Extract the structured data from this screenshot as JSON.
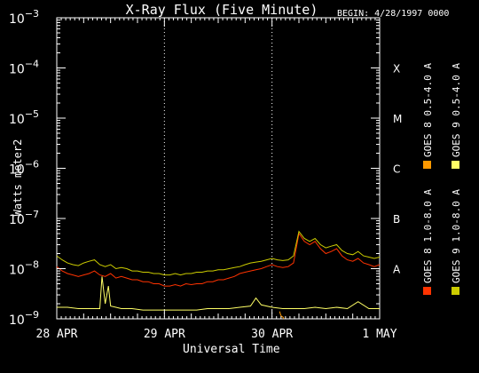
{
  "chart_data": {
    "type": "line",
    "title": "X-Ray Flux (Five Minute)",
    "begin_label": "BEGIN: 4/28/1997 0000",
    "xlabel": "Universal Time",
    "ylabel": "Watts meter2",
    "y_scale": "log",
    "ylim": [
      1e-09,
      0.001
    ],
    "y_tick_exponents": [
      "-3",
      "-4",
      "-5",
      "-6",
      "-7",
      "-8",
      "-9"
    ],
    "x_ticks": [
      "28 APR",
      "29 APR",
      "30 APR",
      "1 MAY"
    ],
    "x_days": [
      0,
      1,
      2,
      3
    ],
    "xlim_days": [
      0,
      3
    ],
    "flare_classes": [
      "X",
      "M",
      "C",
      "B",
      "A"
    ],
    "grid": "dotted vertical at day boundaries",
    "series": [
      {
        "name": "GOES 8 1.0-8.0 A",
        "color": "#ff3300",
        "x_days": [
          0.0,
          0.05,
          0.1,
          0.15,
          0.2,
          0.25,
          0.3,
          0.35,
          0.4,
          0.45,
          0.5,
          0.55,
          0.6,
          0.65,
          0.7,
          0.75,
          0.8,
          0.85,
          0.9,
          0.95,
          1.0,
          1.05,
          1.1,
          1.15,
          1.2,
          1.25,
          1.3,
          1.35,
          1.4,
          1.45,
          1.5,
          1.55,
          1.6,
          1.65,
          1.7,
          1.75,
          1.8,
          1.85,
          1.9,
          1.95,
          2.0,
          2.05,
          2.1,
          2.15,
          2.2,
          2.25,
          2.3,
          2.35,
          2.4,
          2.45,
          2.5,
          2.55,
          2.6,
          2.65,
          2.7,
          2.75,
          2.8,
          2.85,
          2.9,
          2.95,
          3.0
        ],
        "values": [
          1.1e-08,
          9e-09,
          8e-09,
          7.5e-09,
          7e-09,
          7.5e-09,
          8e-09,
          9e-09,
          7.5e-09,
          7e-09,
          8e-09,
          6.5e-09,
          7e-09,
          6.5e-09,
          6e-09,
          6e-09,
          5.5e-09,
          5.5e-09,
          5e-09,
          5e-09,
          4.5e-09,
          4.5e-09,
          4.8e-09,
          4.5e-09,
          5e-09,
          4.8e-09,
          5e-09,
          5e-09,
          5.5e-09,
          5.5e-09,
          6e-09,
          6e-09,
          6.5e-09,
          7e-09,
          8e-09,
          8.5e-09,
          9e-09,
          9.5e-09,
          1e-08,
          1.1e-08,
          1.2e-08,
          1.1e-08,
          1.05e-08,
          1.1e-08,
          1.3e-08,
          5e-08,
          3.5e-08,
          3e-08,
          3.5e-08,
          2.5e-08,
          2e-08,
          2.2e-08,
          2.5e-08,
          1.8e-08,
          1.5e-08,
          1.4e-08,
          1.6e-08,
          1.3e-08,
          1.2e-08,
          1.1e-08,
          1.2e-08
        ]
      },
      {
        "name": "GOES 9 1.0-8.0 A",
        "color": "#cccc00",
        "x_days": [
          0.0,
          0.05,
          0.1,
          0.15,
          0.2,
          0.25,
          0.3,
          0.35,
          0.4,
          0.45,
          0.5,
          0.55,
          0.6,
          0.65,
          0.7,
          0.75,
          0.8,
          0.85,
          0.9,
          0.95,
          1.0,
          1.05,
          1.1,
          1.15,
          1.2,
          1.25,
          1.3,
          1.35,
          1.4,
          1.45,
          1.5,
          1.55,
          1.6,
          1.65,
          1.7,
          1.75,
          1.8,
          1.85,
          1.9,
          1.95,
          2.0,
          2.05,
          2.1,
          2.15,
          2.2,
          2.25,
          2.3,
          2.35,
          2.4,
          2.45,
          2.5,
          2.55,
          2.6,
          2.65,
          2.7,
          2.75,
          2.8,
          2.85,
          2.9,
          2.95,
          3.0
        ],
        "values": [
          1.8e-08,
          1.5e-08,
          1.3e-08,
          1.2e-08,
          1.15e-08,
          1.3e-08,
          1.4e-08,
          1.5e-08,
          1.2e-08,
          1.1e-08,
          1.2e-08,
          1e-08,
          1.05e-08,
          1e-08,
          9e-09,
          9e-09,
          8.5e-09,
          8.5e-09,
          8e-09,
          8e-09,
          7.5e-09,
          7.5e-09,
          8e-09,
          7.5e-09,
          8e-09,
          8e-09,
          8.5e-09,
          8.5e-09,
          9e-09,
          9e-09,
          9.5e-09,
          9.5e-09,
          1e-08,
          1.05e-08,
          1.1e-08,
          1.2e-08,
          1.3e-08,
          1.35e-08,
          1.4e-08,
          1.5e-08,
          1.6e-08,
          1.5e-08,
          1.45e-08,
          1.5e-08,
          1.8e-08,
          5.5e-08,
          4e-08,
          3.5e-08,
          4e-08,
          3e-08,
          2.6e-08,
          2.8e-08,
          3e-08,
          2.3e-08,
          2e-08,
          1.9e-08,
          2.2e-08,
          1.8e-08,
          1.7e-08,
          1.6e-08,
          1.7e-08
        ]
      },
      {
        "name": "GOES 8 0.5-4.0 A",
        "color": "#ff9900",
        "x_days": [
          2.07,
          2.08,
          2.09,
          2.1,
          2.11
        ],
        "values": [
          1.4e-09,
          1.2e-09,
          1.1e-09,
          1.1e-09,
          1e-09
        ]
      },
      {
        "name": "GOES 9 0.5-4.0 A",
        "color": "#ffff66",
        "x_days": [
          0.0,
          0.1,
          0.2,
          0.3,
          0.4,
          0.42,
          0.45,
          0.48,
          0.5,
          0.55,
          0.6,
          0.7,
          0.8,
          0.9,
          1.0,
          1.1,
          1.2,
          1.3,
          1.4,
          1.5,
          1.6,
          1.7,
          1.8,
          1.85,
          1.9,
          2.0,
          2.1,
          2.2,
          2.3,
          2.4,
          2.5,
          2.6,
          2.7,
          2.8,
          2.9,
          3.0
        ],
        "values": [
          1.7e-09,
          1.7e-09,
          1.6e-09,
          1.6e-09,
          1.6e-09,
          7e-09,
          2e-09,
          4.5e-09,
          1.8e-09,
          1.7e-09,
          1.6e-09,
          1.6e-09,
          1.5e-09,
          1.5e-09,
          1.5e-09,
          1.5e-09,
          1.5e-09,
          1.5e-09,
          1.6e-09,
          1.6e-09,
          1.6e-09,
          1.7e-09,
          1.8e-09,
          2.6e-09,
          1.9e-09,
          1.7e-09,
          1.6e-09,
          1.6e-09,
          1.6e-09,
          1.7e-09,
          1.6e-09,
          1.7e-09,
          1.6e-09,
          2.2e-09,
          1.6e-09,
          1.6e-09
        ]
      }
    ],
    "legend_placement": "right, vertical"
  }
}
